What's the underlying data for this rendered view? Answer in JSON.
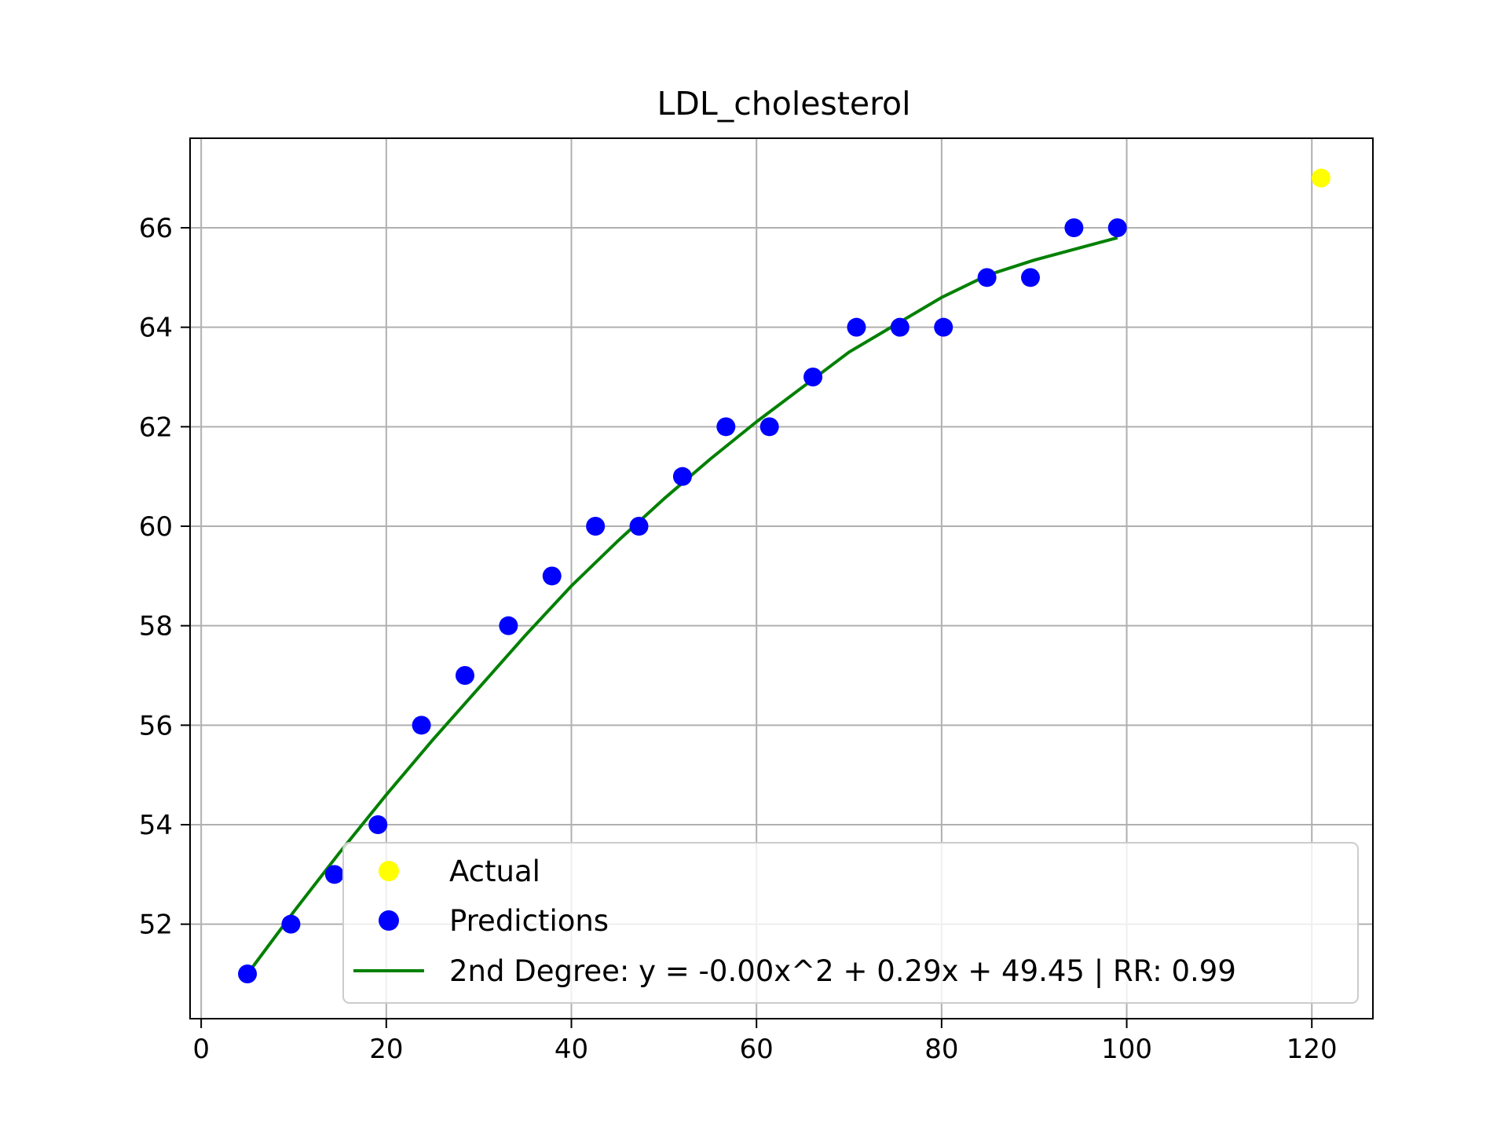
{
  "chart_data": {
    "type": "scatter",
    "title": "LDL_cholesterol",
    "xlabel": "",
    "ylabel": "",
    "xlim": [
      -1.2,
      126.6
    ],
    "ylim": [
      50.1,
      67.8
    ],
    "x_ticks": [
      0,
      20,
      40,
      60,
      80,
      100,
      120
    ],
    "y_ticks": [
      52,
      54,
      56,
      58,
      60,
      62,
      64,
      66
    ],
    "grid": true,
    "legend_position": "lower-right",
    "series": [
      {
        "name": "Actual",
        "kind": "scatter",
        "color": "#ffff00",
        "points": [
          [
            121,
            67
          ]
        ]
      },
      {
        "name": "Predictions",
        "kind": "scatter",
        "color": "#0000ff",
        "points": [
          [
            5,
            51
          ],
          [
            9.7,
            52
          ],
          [
            14.4,
            53
          ],
          [
            19.1,
            54
          ],
          [
            23.8,
            56
          ],
          [
            28.5,
            57
          ],
          [
            33.2,
            58
          ],
          [
            37.9,
            59
          ],
          [
            42.6,
            60
          ],
          [
            47.3,
            60
          ],
          [
            52,
            61
          ],
          [
            56.7,
            62
          ],
          [
            61.4,
            62
          ],
          [
            66.1,
            63
          ],
          [
            70.8,
            64
          ],
          [
            75.5,
            64
          ],
          [
            80.2,
            64
          ],
          [
            84.9,
            65
          ],
          [
            89.6,
            65
          ],
          [
            94.3,
            66
          ],
          [
            99,
            66
          ]
        ]
      },
      {
        "name": "2nd Degree: y = -0.00x^2 + 0.29x + 49.45 | RR: 0.99",
        "kind": "line",
        "color": "#008000",
        "points": [
          [
            5,
            51
          ],
          [
            10,
            52.25
          ],
          [
            15,
            53.45
          ],
          [
            20,
            54.6
          ],
          [
            25,
            55.7
          ],
          [
            30,
            56.75
          ],
          [
            35,
            57.8
          ],
          [
            40,
            58.8
          ],
          [
            45,
            59.7
          ],
          [
            50,
            60.55
          ],
          [
            55,
            61.35
          ],
          [
            60,
            62.1
          ],
          [
            65,
            62.8
          ],
          [
            70,
            63.5
          ],
          [
            75,
            64.05
          ],
          [
            80,
            64.6
          ],
          [
            85,
            65.05
          ],
          [
            90,
            65.35
          ],
          [
            95,
            65.6
          ],
          [
            99,
            65.8
          ]
        ]
      }
    ]
  }
}
